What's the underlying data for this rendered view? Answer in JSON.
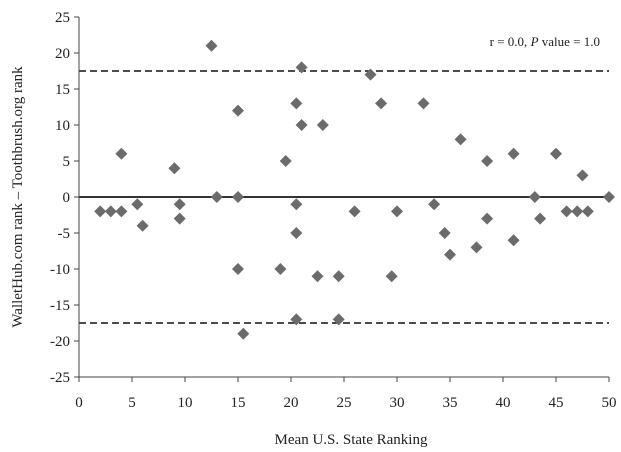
{
  "chart_data": {
    "type": "scatter",
    "xlabel": "Mean U.S. State Ranking",
    "ylabel": "WalletHub.com rank – Toothbrush.org rank",
    "xlim": [
      0,
      50
    ],
    "ylim": [
      -25,
      25
    ],
    "xticks": [
      "0",
      "5",
      "10",
      "15",
      "20",
      "25",
      "30",
      "35",
      "40",
      "45",
      "50"
    ],
    "yticks": [
      "25",
      "20",
      "15",
      "10",
      "5",
      "0",
      "-5",
      "-10",
      "-15",
      "-20",
      "-25"
    ],
    "annotation": {
      "prefix": "r = 0.0, ",
      "italic": "P",
      "suffix": " value = 1.0"
    },
    "reference_lines": {
      "zero": 0,
      "upper_limit": 17.5,
      "lower_limit": -17.5
    },
    "marker_color": "#6b6b6b",
    "points": [
      {
        "x": 2,
        "y": -2
      },
      {
        "x": 3,
        "y": -2
      },
      {
        "x": 4,
        "y": -2
      },
      {
        "x": 4,
        "y": 6
      },
      {
        "x": 5.5,
        "y": -1
      },
      {
        "x": 6,
        "y": -4
      },
      {
        "x": 9,
        "y": 4
      },
      {
        "x": 9.5,
        "y": -1
      },
      {
        "x": 9.5,
        "y": -3
      },
      {
        "x": 12.5,
        "y": 21
      },
      {
        "x": 13,
        "y": 0
      },
      {
        "x": 15,
        "y": 12
      },
      {
        "x": 15,
        "y": 0
      },
      {
        "x": 15,
        "y": -10
      },
      {
        "x": 15.5,
        "y": -19
      },
      {
        "x": 19,
        "y": -10
      },
      {
        "x": 19.5,
        "y": 5
      },
      {
        "x": 20.5,
        "y": 13
      },
      {
        "x": 20.5,
        "y": -1
      },
      {
        "x": 20.5,
        "y": -5
      },
      {
        "x": 20.5,
        "y": -17
      },
      {
        "x": 21,
        "y": 18
      },
      {
        "x": 21,
        "y": 10
      },
      {
        "x": 22.5,
        "y": -11
      },
      {
        "x": 23,
        "y": 10
      },
      {
        "x": 24.5,
        "y": -11
      },
      {
        "x": 24.5,
        "y": -17
      },
      {
        "x": 26,
        "y": -2
      },
      {
        "x": 27.5,
        "y": 17
      },
      {
        "x": 28.5,
        "y": 13
      },
      {
        "x": 29.5,
        "y": -11
      },
      {
        "x": 30,
        "y": -2
      },
      {
        "x": 32.5,
        "y": 13
      },
      {
        "x": 33.5,
        "y": -1
      },
      {
        "x": 34.5,
        "y": -5
      },
      {
        "x": 35,
        "y": -8
      },
      {
        "x": 36,
        "y": 8
      },
      {
        "x": 37.5,
        "y": -7
      },
      {
        "x": 38.5,
        "y": 5
      },
      {
        "x": 38.5,
        "y": -3
      },
      {
        "x": 41,
        "y": 6
      },
      {
        "x": 41,
        "y": -6
      },
      {
        "x": 43,
        "y": 0
      },
      {
        "x": 43.5,
        "y": -3
      },
      {
        "x": 45,
        "y": 6
      },
      {
        "x": 46,
        "y": -2
      },
      {
        "x": 47,
        "y": -2
      },
      {
        "x": 47.5,
        "y": 3
      },
      {
        "x": 48,
        "y": -2
      },
      {
        "x": 50,
        "y": 0
      }
    ]
  }
}
